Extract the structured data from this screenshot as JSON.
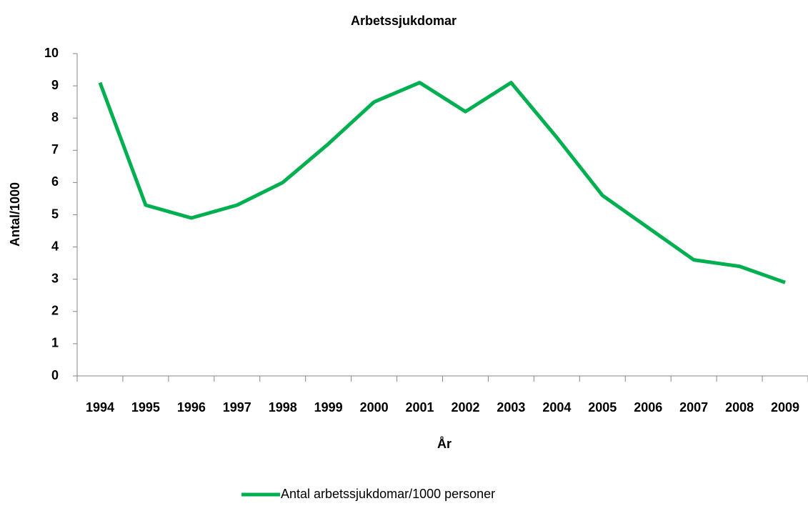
{
  "chart_data": {
    "type": "line",
    "title": "Arbetssjukdomar",
    "x_label": "År",
    "y_label": "Antal/1000",
    "categories": [
      "1994",
      "1995",
      "1996",
      "1997",
      "1998",
      "1999",
      "2000",
      "2001",
      "2002",
      "2003",
      "2004",
      "2005",
      "2006",
      "2007",
      "2008",
      "2009"
    ],
    "series": [
      {
        "name": "Antal arbetssjukdomar/1000 personer",
        "color": "#00b050",
        "values": [
          9.1,
          5.3,
          4.9,
          5.3,
          6.0,
          7.2,
          8.5,
          9.1,
          8.2,
          9.1,
          7.4,
          5.6,
          4.6,
          3.6,
          3.4,
          2.9
        ]
      }
    ],
    "ylim": [
      0,
      10
    ],
    "yticks": [
      0,
      1,
      2,
      3,
      4,
      5,
      6,
      7,
      8,
      9,
      10
    ],
    "grid": false,
    "legend": "bottom"
  }
}
